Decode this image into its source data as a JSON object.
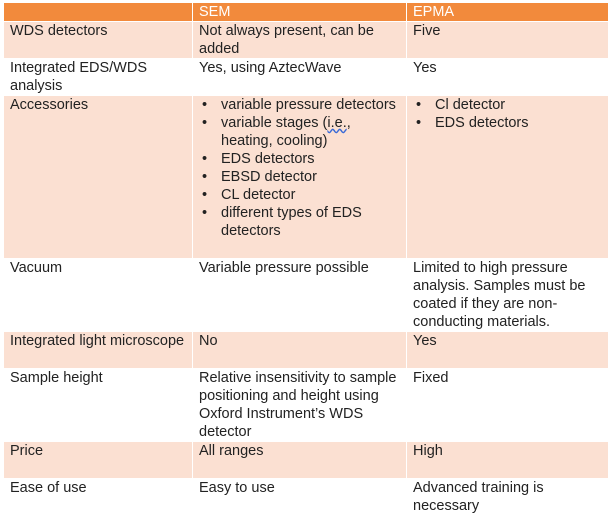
{
  "header": {
    "col1": "",
    "col2": "SEM",
    "col3": "EPMA"
  },
  "rows": [
    {
      "label": "WDS detectors",
      "sem": "Not always present, can be added",
      "epma": "Five"
    },
    {
      "label": "Integrated EDS/WDS analysis",
      "sem": "Yes, using AztecWave",
      "epma": "Yes"
    },
    {
      "label": "Accessories",
      "sem_items": [
        "variable pressure detectors",
        "variable stages (",
        "i.e.",
        ", heating, cooling)",
        "EDS detectors",
        "EBSD detector",
        "CL detector",
        "different types of EDS detectors"
      ],
      "epma_items": [
        "Cl detector",
        "EDS detectors"
      ]
    },
    {
      "label": "Vacuum",
      "sem": "Variable pressure possible",
      "epma": "Limited to high pressure analysis. Samples must be coated if they are non-conducting materials."
    },
    {
      "label": "Integrated light microscope",
      "sem": "No",
      "epma": "Yes"
    },
    {
      "label": "Sample height",
      "sem": "Relative insensitivity to sample positioning and height using Oxford Instrument’s WDS detector",
      "epma": "Fixed"
    },
    {
      "label": "Price",
      "sem": "All ranges",
      "epma": "High"
    },
    {
      "label": "Ease of use",
      "sem": "Easy to use",
      "epma": "Advanced training is necessary"
    }
  ],
  "colors": {
    "header_bg": "#f28a3c",
    "band_bg": "#fbe0d2",
    "header_text": "#ffffff"
  }
}
